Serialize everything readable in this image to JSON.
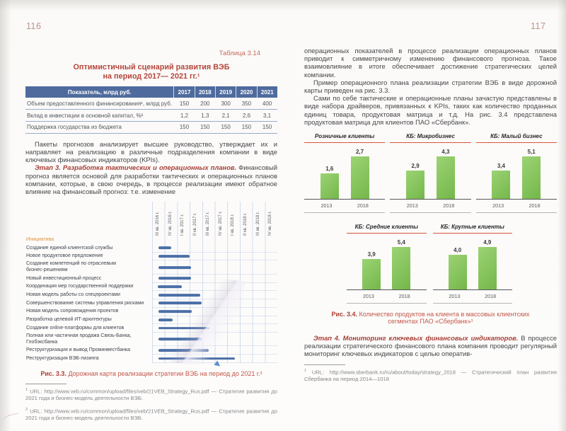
{
  "page_left": {
    "page_number": "116",
    "table_label": "Таблица 3.14",
    "table_title": "Оптимистичный сценарий развития ВЭБ\nна период 2017— 2021 гг.¹",
    "table": {
      "header": [
        "Показатель, млрд руб.",
        "2017",
        "2018",
        "2019",
        "2020",
        "2021"
      ],
      "rows": [
        {
          "label": "Объем предоставленного финансирования¹, млрд руб.",
          "values": [
            "150",
            "200",
            "300",
            "350",
            "400"
          ]
        },
        {
          "label": "Вклад в инвестиции в основной капитал, %²",
          "values": [
            "1,2",
            "1,3",
            "2,1",
            "2,6",
            "3,1"
          ]
        },
        {
          "label": "Поддержка государства из бюджета",
          "values": [
            "150",
            "150",
            "150",
            "150",
            "150"
          ]
        }
      ]
    },
    "para1": "Пакеты прогнозов анализирует высшее руководство, утверждает их и направляет на реализацию в различные подразделения компании в виде ключевых финансовых индикаторов (KPIs).",
    "stage3_lead": "Этап 3. Разработка тактических и операционных планов.",
    "stage3_rest": " Финансовый прогноз является основой для разработки тактических и операционных планов компании, которые, в свою очередь, в процессе реализации имеют обратное влияние на финансовый прогноз: т.е. изменение",
    "gantt_initiative_label": "Инициатива",
    "fig33_bold": "Рис. 3.3.",
    "fig33_rest": " Дорожная карта реализации стратегии ВЭБ на период до 2021 г.²",
    "footnotes": [
      {
        "sup": "1",
        "text": "URL: http://www.veb.ru/common/upload/files/veb/21VEB_Strategy_Rus.pdf — Стратегия развития до 2021 года и бизнес-модель деятельности ВЭБ."
      },
      {
        "sup": "2",
        "text": "URL: http://www.veb.ru/common/upload/files/veb/21VEB_Strategy_Rus.pdf — Стратегия развития до 2021 года и бизнес-модель деятельности ВЭБ."
      }
    ]
  },
  "page_right": {
    "page_number": "117",
    "para1": "операционных показателей в процессе реализации операционных планов приводит к симметричному изменению финансового прогноза. Такое взаимовлияние в итоге обеспечивает достижение стратегических целей компании.",
    "para2": "Пример операционного плана реализации стратегии ВЭБ в виде дорожной карты приведен на рис. 3.3.",
    "para3": "Сами по себе тактические и операционные планы зачастую представлены в виде набора драйверов, привязанных к KPIs, таких как количество проданных единиц товара, продуктовая матрица и т.д. На рис. 3.4 представлена продуктовая матрица для клиентов ПАО «Сбербанк».",
    "fig34_bold": "Рис. 3.4.",
    "fig34_rest": " Количество продуктов на клиента в массовых клиентских сегментах ПАО «Сбербанк»¹",
    "stage4_lead": "Этап 4. Мониторинг ключевых финансовых индикаторов.",
    "stage4_rest": " В процессе реализации стратегического финансового плана компания проводит регулярный мониторинг ключевых индикаторов с целью оператив-",
    "footnote": {
      "sup": "1",
      "text": "URL: http://www.sberbank.ru/ru/about/today/strategy_2018 — Стратегический план развития Сбербанка на период 2014—1018"
    }
  },
  "chart_data": [
    {
      "type": "gantt",
      "title": "Дорожная карта реализации стратегии ВЭБ на период до 2021 г.",
      "columns": [
        "III кв. 2016 г.",
        "IV кв. 2016 г.",
        "I кв. 2017 г.",
        "II кв. 2017 г.",
        "III кв. 2017 г.",
        "IV кв. 2017 г.",
        "I кв. 2018 г.",
        "II кв. 2018 г.",
        "III кв. 2018 г.",
        "IV кв. 2018 г."
      ],
      "axis_units": "quarter-columns 0–10",
      "rows": [
        {
          "label": "Создание единой клиентской службы",
          "start": 0.5,
          "end": 1.55
        },
        {
          "label": "Новое продуктовое предложение",
          "start": 0.5,
          "end": 3.0
        },
        {
          "label": "Создание компетенций по отраслевым\nбизнес-решениям",
          "start": 0.5,
          "end": 3.1
        },
        {
          "label": "Новый инвестиционный процесс",
          "start": 0.5,
          "end": 3.1
        },
        {
          "label": "Координация мер государственной поддержки",
          "start": 0.45,
          "end": 2.35
        },
        {
          "label": "Новая модель работы со спецпроектами",
          "start": 0.5,
          "end": 3.85
        },
        {
          "label": "Совершенствование системы управления рисками",
          "start": 0.5,
          "end": 3.95
        },
        {
          "label": "Новая модель сопровождения проектов",
          "start": 0.5,
          "end": 3.15
        },
        {
          "label": "Разработка целевой ИТ-архитектуры",
          "start": 0.5,
          "end": 1.65
        },
        {
          "label": "Создание online-платформы для клиентов",
          "start": 0.5,
          "end": 4.6
        },
        {
          "label": "Полная или частичная продажа Связь-Банка,\nГлобэксбанка",
          "start": 0.5,
          "end": 3.95
        },
        {
          "label": "Реструктуризация и вывод Проминвестбанка",
          "start": 0.5,
          "end": 4.5
        },
        {
          "label": "Реструктуризация ВЭБ-лизинга",
          "start": 0.5,
          "end": 6.6
        }
      ],
      "bar_color": "#4b6fa7",
      "grid_color": "#9bb3d9"
    },
    {
      "type": "bar",
      "title": "Количество продуктов на клиента в массовых клиентских сегментах ПАО «Сбербанк»",
      "categories": [
        "2013",
        "2018"
      ],
      "charts": [
        {
          "name": "Розничные клиенты",
          "values": [
            1.6,
            2.7
          ],
          "labels": [
            "1,6",
            "2,7"
          ]
        },
        {
          "name": "КБ: Микробизнес",
          "values": [
            2.9,
            4.3
          ],
          "labels": [
            "2,9",
            "4,3"
          ]
        },
        {
          "name": "КБ: Малый бизнес",
          "values": [
            3.4,
            5.1
          ],
          "labels": [
            "3,4",
            "5,1"
          ]
        },
        {
          "name": "КБ: Средние клиенты",
          "values": [
            3.9,
            5.4
          ],
          "labels": [
            "3,9",
            "5,4"
          ]
        },
        {
          "name": "КБ: Крупные клиенты",
          "values": [
            4.0,
            4.9
          ],
          "labels": [
            "4,0",
            "4,9"
          ]
        }
      ],
      "bar_color": "#84c45c",
      "accent_rule_color": "#d8573c",
      "legend_position": "none",
      "grid": false
    }
  ]
}
